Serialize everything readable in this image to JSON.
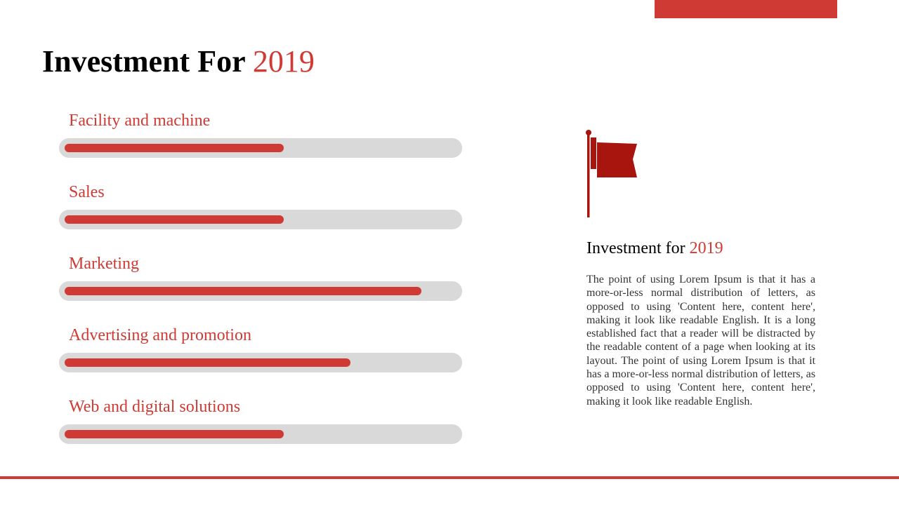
{
  "title": {
    "main": "Investment For",
    "year": "2019"
  },
  "items": [
    {
      "label": "Facility and machine",
      "progress": 0.56
    },
    {
      "label": "Sales",
      "progress": 0.56
    },
    {
      "label": "Marketing",
      "progress": 0.91
    },
    {
      "label": "Advertising and promotion",
      "progress": 0.73
    },
    {
      "label": "Web and digital solutions",
      "progress": 0.56
    }
  ],
  "side": {
    "icon": "flag-icon",
    "title": "Investment for",
    "year": "2019",
    "body": "The point of using Lorem Ipsum is that it has a more-or-less normal distribution of letters, as opposed to using 'Content here, content here', making it look like readable English. It is a long established fact that a reader will be distracted by the readable content of a page when looking at its layout. The point of using Lorem Ipsum is that it has a more-or-less normal distribution of letters, as opposed to using 'Content here, content here', making it look like readable English."
  },
  "colors": {
    "accent": "#cf3a34",
    "track": "#d9d9d9",
    "flag": "#a8140e"
  }
}
